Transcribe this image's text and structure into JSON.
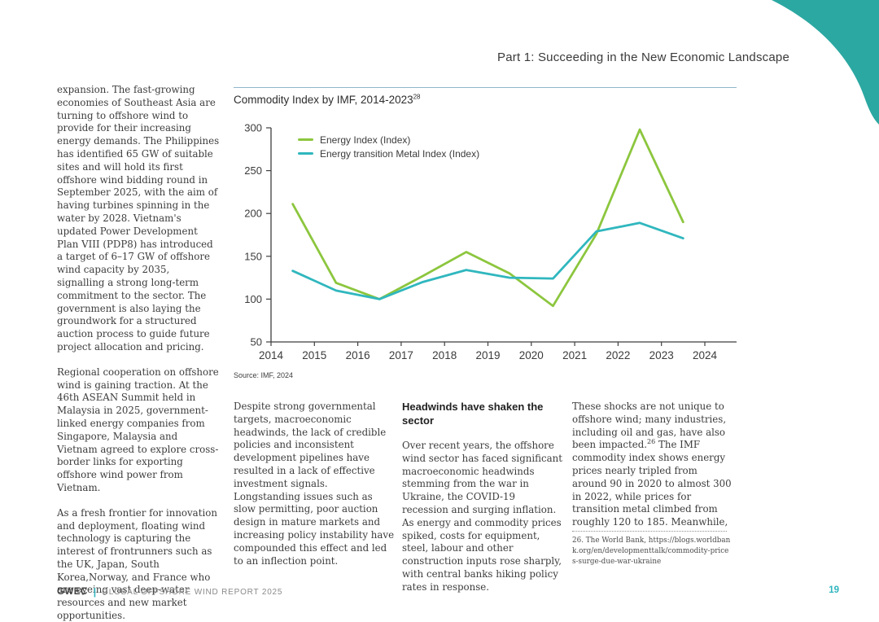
{
  "page": {
    "header": "Part 1: Succeeding in the New Economic Landscape",
    "footer": {
      "brand": "GWEC",
      "separator": "|",
      "report_title": "GLOBAL OFFSHORE WIND REPORT 2025",
      "page_number": "19"
    }
  },
  "colors": {
    "swoosh_teal": "#2BA8A2",
    "chart_rule_blue": "#8FB7CB",
    "energy_green": "#8CC63E",
    "metal_teal": "#30B7BE",
    "footer_accent_teal": "#2FB5BF",
    "axis_gray": "#3f3f3f"
  },
  "left_column": {
    "paragraphs": [
      "expansion. The fast-growing economies of Southeast Asia are turning to offshore wind to provide for their increasing energy demands. The Philippines has identified 65 GW of suitable sites and will hold its first offshore wind bidding round in September 2025, with the aim of having turbines spinning in the water by 2028. Vietnam's updated Power Development Plan VIII (PDP8) has introduced a target of 6–17 GW of offshore wind capacity by 2035, signalling a strong long-term commitment to the sector. The government is also laying the groundwork for a structured auction process to guide future project allocation and pricing.",
      "Regional cooperation on offshore wind is gaining traction. At the 46th ASEAN Summit held in Malaysia in 2025, government-linked energy companies from Singapore, Malaysia and Vietnam agreed to explore cross-border links for exporting offshore wind power from Vietnam.",
      "As a fresh frontier for innovation and deployment, floating wind technology is capturing the interest of frontrunners such as the UK, Japan, South Korea,Norway, and France who are eyeing vast deep-water resources and new market opportunities."
    ]
  },
  "chart": {
    "title": "Commodity Index by IMF, 2014-2023",
    "title_superscript": "28"
  },
  "chart_data": {
    "type": "line",
    "title": "Commodity Index by IMF, 2014-2023",
    "source": "Source: IMF, 2024",
    "x_years": [
      2014,
      2015,
      2016,
      2017,
      2018,
      2019,
      2020,
      2021,
      2022,
      2023
    ],
    "point_offset": 0.5,
    "series": [
      {
        "name": "Energy Index (Index)",
        "color": "#8CC63E",
        "values": [
          211,
          119,
          100,
          127,
          155,
          130,
          92,
          176,
          298,
          190
        ]
      },
      {
        "name": "Energy transition Metal Index (Index)",
        "color": "#30B7BE",
        "values": [
          133,
          110,
          100,
          120,
          134,
          125,
          124,
          179,
          189,
          171
        ]
      }
    ],
    "xlim": [
      2014,
      2024
    ],
    "ylim": [
      50,
      300
    ],
    "yticks": [
      50,
      100,
      150,
      200,
      250,
      300
    ],
    "xticks": [
      2014,
      2015,
      2016,
      2017,
      2018,
      2019,
      2020,
      2021,
      2022,
      2023,
      2024
    ],
    "grid": false,
    "legend_position": "top-left-inside"
  },
  "columns": {
    "col2": {
      "paragraph": "Despite strong governmental targets, macroeconomic headwinds, the lack of credible policies and inconsistent development pipelines have resulted in a lack of effective investment signals. Longstanding issues such as slow permitting, poor auction design in mature markets and increasing policy instability have compounded this effect and led to an inflection point."
    },
    "col3": {
      "heading": "Headwinds have shaken the sector",
      "paragraph": "Over recent years, the offshore wind sector has faced significant macroeconomic headwinds stemming from the war in Ukraine, the COVID-19 recession and surging inflation. As energy and commodity prices spiked, costs for equipment, steel, labour and other construction inputs rose sharply, with central banks hiking policy rates in response."
    },
    "col4": {
      "text_before_sup": "These shocks are not unique to offshore wind; many industries, including oil and gas, have also been impacted.",
      "superscript": "26",
      "text_after_sup": " The IMF commodity index shows energy prices nearly tripled from around 90 in 2020 to almost 300 in 2022, while prices for transition metal climbed from roughly 120 to 185. Meanwhile,"
    }
  },
  "footnote": {
    "text": "26. The World Bank, https://blogs.worldbank.org/en/developmenttalk/commodity-prices-surge-due-war-ukraine"
  }
}
